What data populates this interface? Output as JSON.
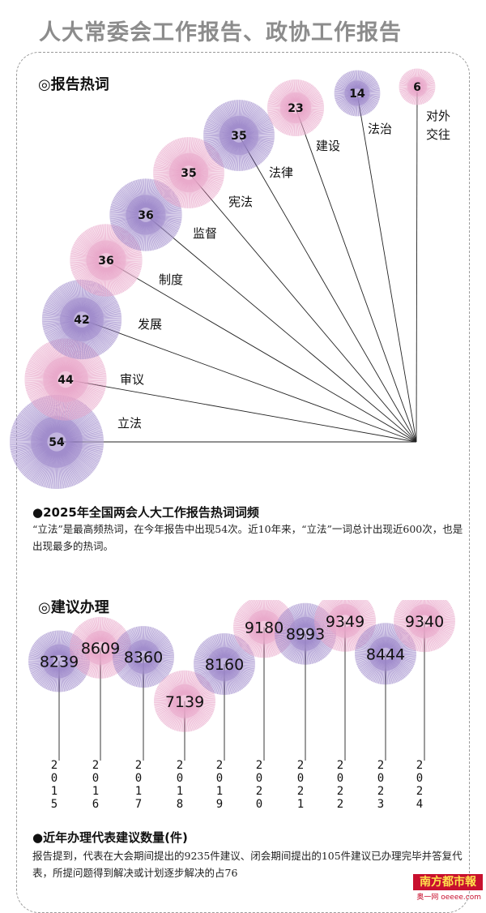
{
  "header": {
    "title": "人大常委会工作报告、政协工作报告"
  },
  "section1": {
    "title": "◎报告热词",
    "caption": "●2025年全国两会人大工作报告热词词频",
    "desc": "“立法”是最高频热词，在今年报告中出现54次。近10年来，“立法”一词总计出现近600次，也是出现最多的热词。"
  },
  "section2": {
    "title": "◎建议办理",
    "caption": "●近年办理代表建议数量(件)",
    "desc": "报告提到，代表在大会期间提出的9235件建议、闭会期间提出的105件建议已办理完毕并答复代表，所提问题得到解决或计划逐步解决的占76"
  },
  "logo": {
    "name": "南方都市報",
    "sub": "奥一网 oeeee.com"
  },
  "colors": {
    "purple": "#9b86c9",
    "pink": "#e8a4c8",
    "line": "#222222"
  },
  "chart_data": [
    {
      "type": "bubble-fan",
      "categories": [
        "立法",
        "审议",
        "发展",
        "制度",
        "监督",
        "宪法",
        "法律",
        "建设",
        "法治",
        "对外交往"
      ],
      "values": [
        54,
        44,
        42,
        36,
        36,
        35,
        35,
        23,
        14,
        6
      ],
      "label_lines": [
        [
          "立法"
        ],
        [
          "审议"
        ],
        [
          "发展"
        ],
        [
          "制度"
        ],
        [
          "监督"
        ],
        [
          "宪法"
        ],
        [
          "法律"
        ],
        [
          "建设"
        ],
        [
          "法治"
        ],
        [
          "对外",
          "交往"
        ]
      ]
    },
    {
      "type": "bubble-bar",
      "categories": [
        "2015",
        "2016",
        "2017",
        "2018",
        "2019",
        "2020",
        "2021",
        "2022",
        "2023",
        "2024"
      ],
      "values": [
        8239,
        8609,
        8360,
        7139,
        8160,
        9180,
        8993,
        9349,
        8444,
        9340
      ]
    }
  ]
}
